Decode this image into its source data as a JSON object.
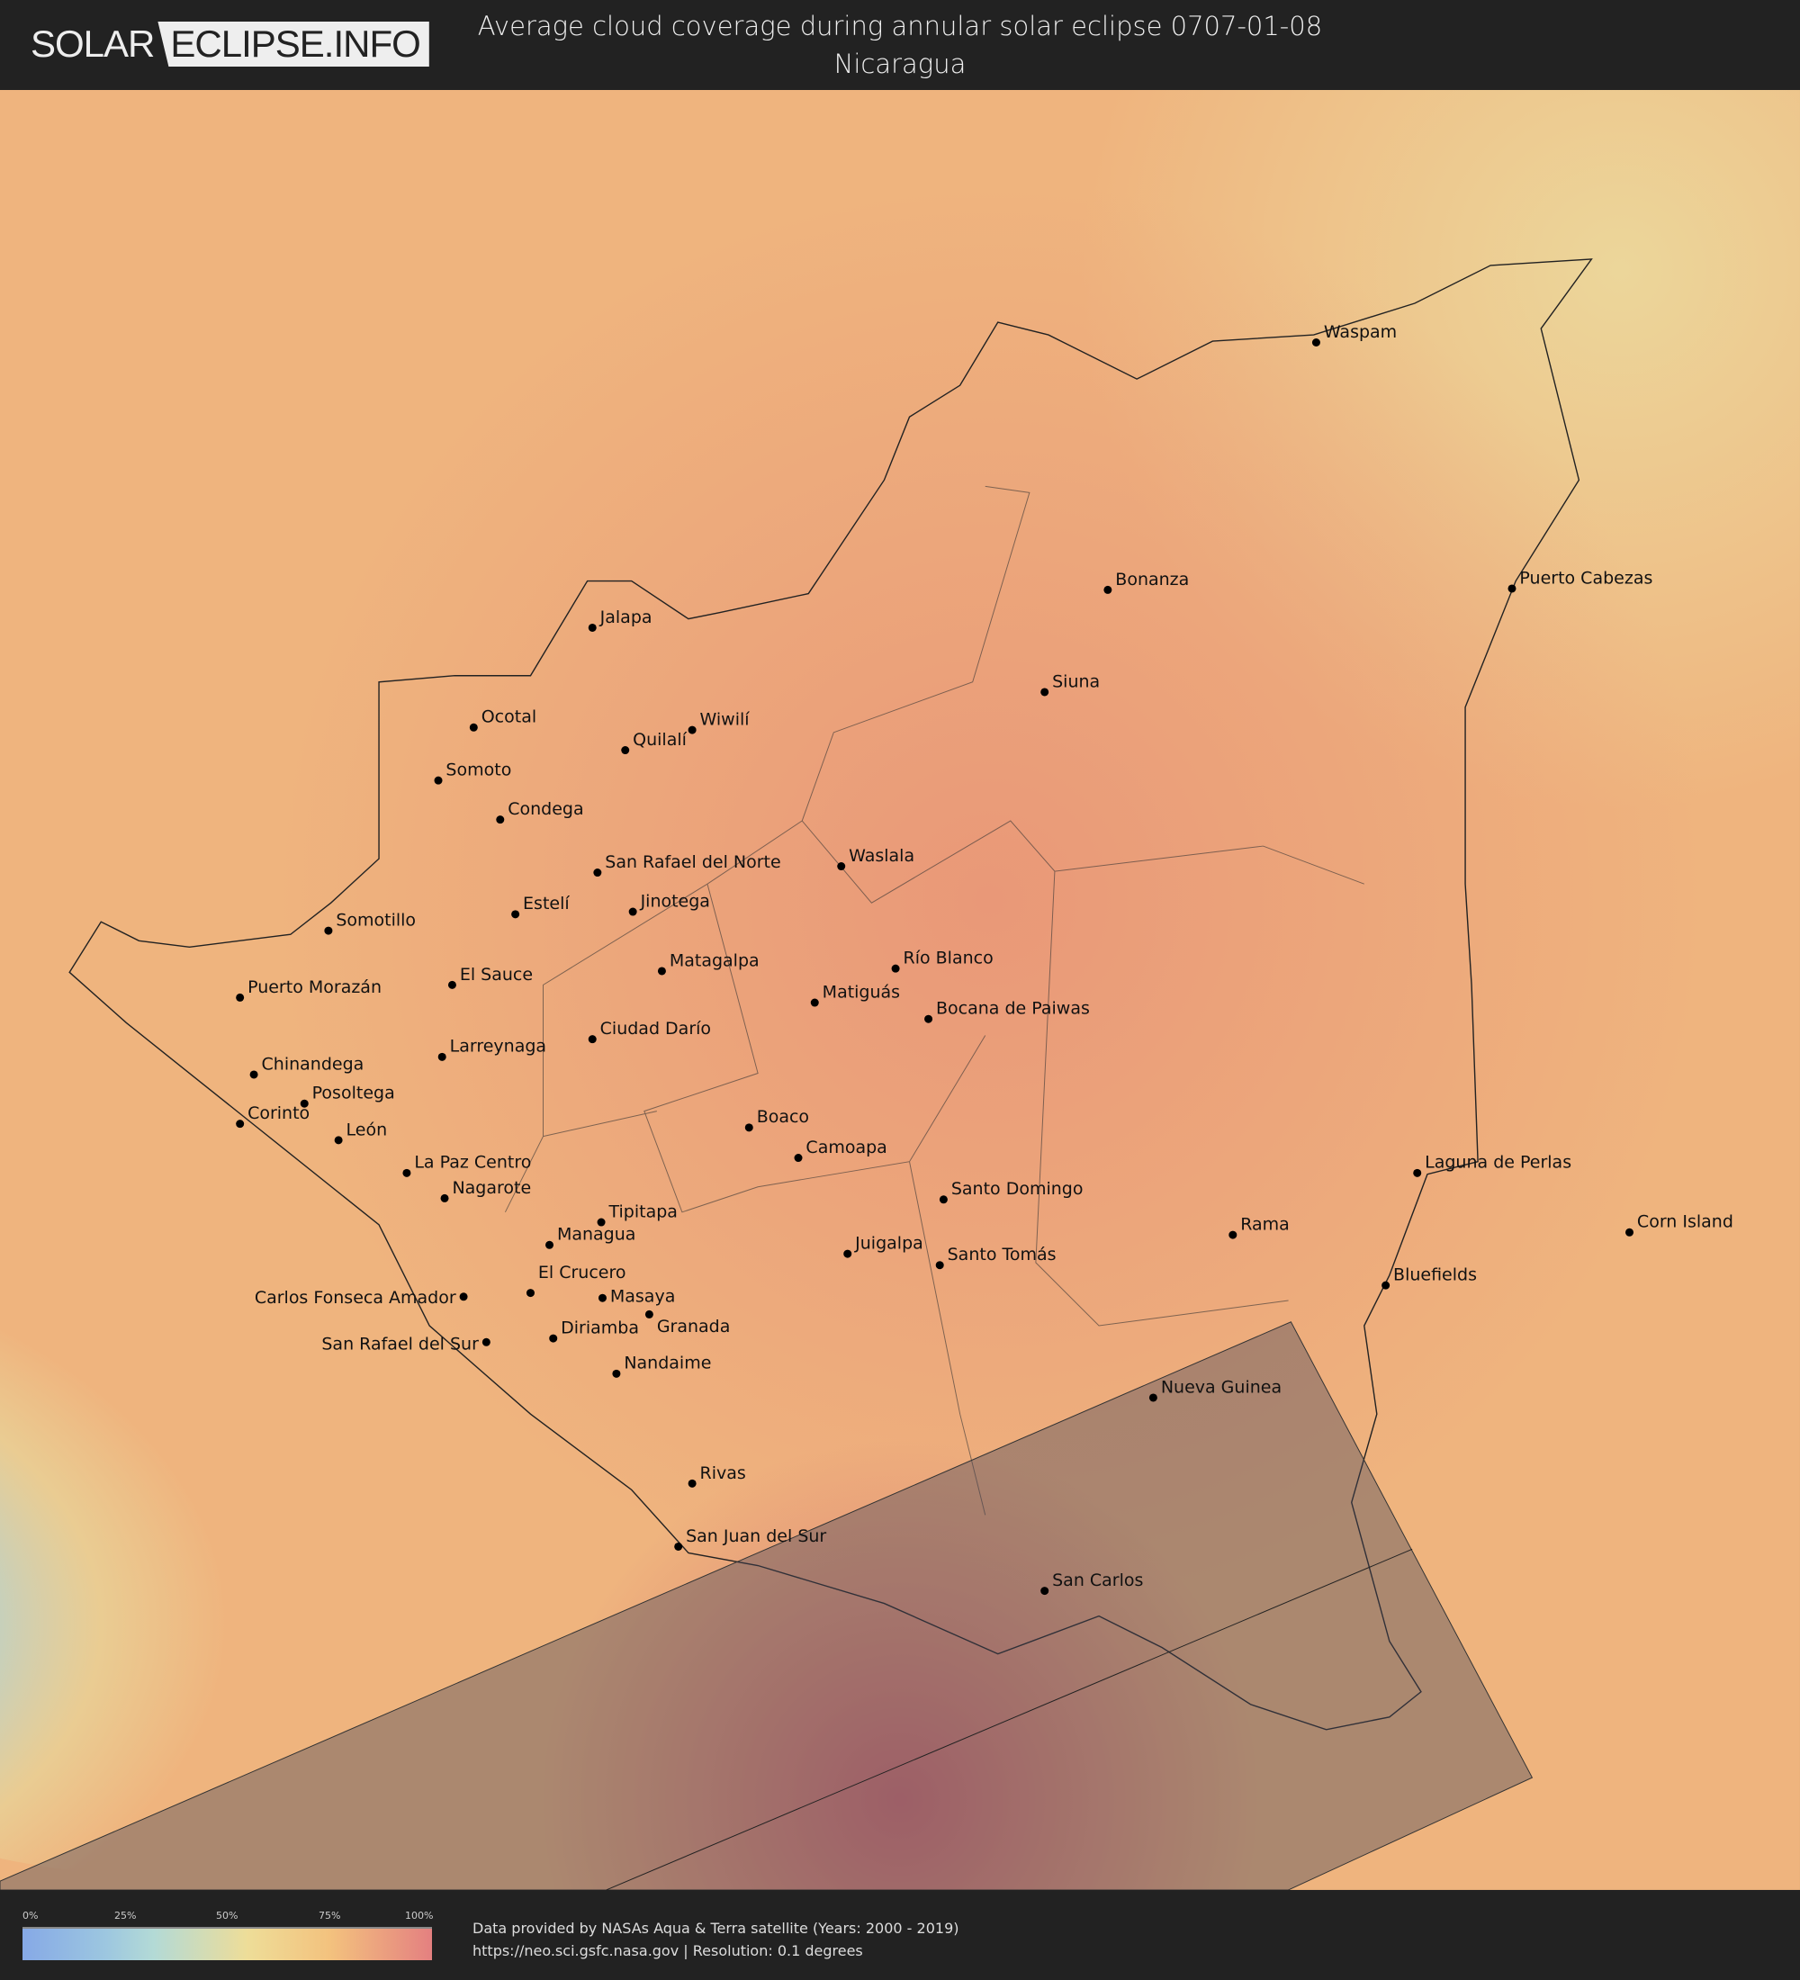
{
  "header": {
    "logo_left": "SOLAR",
    "logo_right": "ECLIPSE.INFO",
    "title_line1": "Average cloud coverage during annular solar eclipse 0707-01-08",
    "title_line2": "Nicaragua"
  },
  "legend": {
    "ticks": [
      "0%",
      "25%",
      "50%",
      "75%",
      "100%"
    ],
    "colors": [
      "#86a9e6",
      "#b3dad6",
      "#eedd98",
      "#f3c27e",
      "#e48080"
    ]
  },
  "footer": {
    "line1": "Data provided by NASAs Aqua & Terra satellite (Years: 2000 - 2019)",
    "line2": "https://neo.sci.gsfc.nasa.gov | Resolution: 0.1 degrees"
  },
  "cities": [
    "Waspam",
    "Bonanza",
    "Puerto Cabezas",
    "Jalapa",
    "Siuna",
    "Ocotal",
    "Wiwilí",
    "Quilalí",
    "Somoto",
    "Condega",
    "San Rafael del Norte",
    "Waslala",
    "Estelí",
    "Jinotega",
    "Somotillo",
    "Matagalpa",
    "Río Blanco",
    "El Sauce",
    "Puerto Morazán",
    "Matiguás",
    "Bocana de Paiwas",
    "Ciudad Darío",
    "Larreynaga",
    "Chinandega",
    "Posoltega",
    "Corinto",
    "León",
    "Boaco",
    "Camoapa",
    "Laguna de Perlas",
    "La Paz Centro",
    "Nagarote",
    "Santo Domingo",
    "Tipitapa",
    "Corn Island",
    "Rama",
    "Managua",
    "Juigalpa",
    "Santo Tomás",
    "Bluefields",
    "Carlos Fonseca Amador",
    "El Crucero",
    "Masaya",
    "Granada",
    "Diriamba",
    "San Rafael del Sur",
    "Nandaime",
    "Nueva Guinea",
    "Rivas",
    "San Juan del Sur",
    "San Carlos"
  ]
}
